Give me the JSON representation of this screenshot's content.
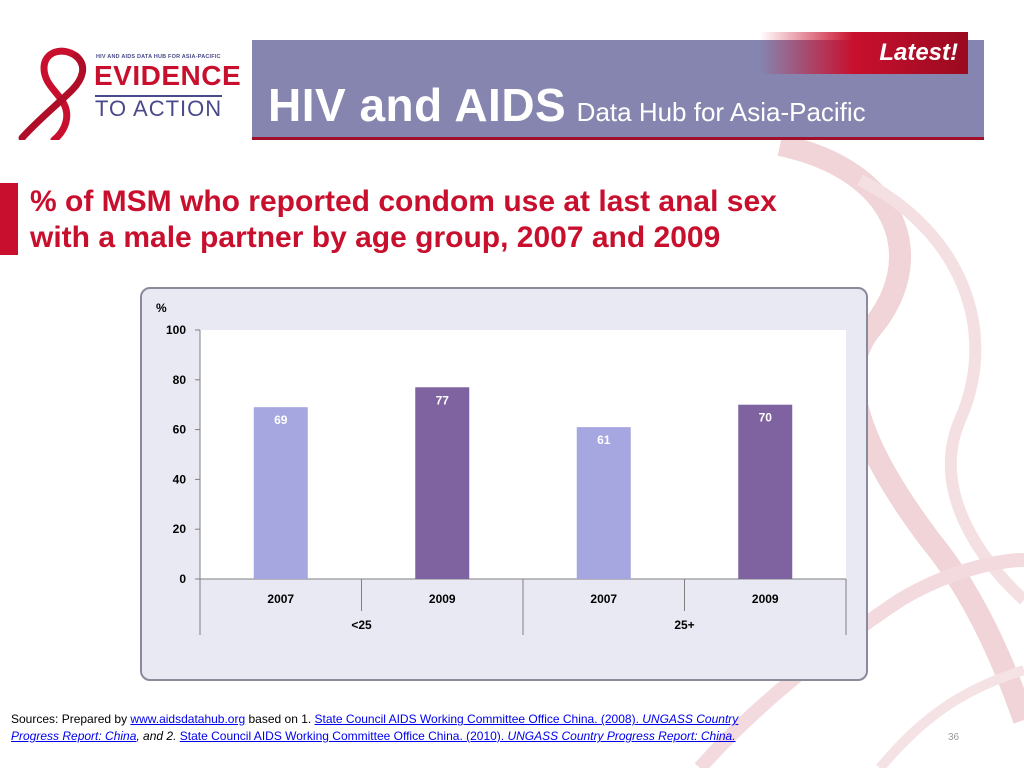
{
  "header": {
    "logo_small_text": "HIV AND AIDS DATA HUB FOR ASIA-PACIFIC",
    "logo_line1": "EVIDENCE",
    "logo_line2": "TO ACTION",
    "title_main": "HIV and AIDS",
    "title_sub": "Data Hub for Asia-Pacific",
    "latest_label": "Latest!"
  },
  "slide": {
    "title_line1": "% of MSM who reported condom use at last anal sex",
    "title_line2": "with a male partner by age group, 2007 and 2009",
    "page_number": "36"
  },
  "sources": {
    "prefix": "Sources: Prepared by ",
    "link_main": "www.aidsdatahub.org",
    "based_on": "  based on 1. ",
    "ref1_link": "State Council AIDS Working Committee Office China. (2008). ",
    "ref1_title_a": "UNGASS Country",
    "ref1_title_b": "Progress Report: China",
    "and_2": ", and 2. ",
    "ref2_link": "State Council AIDS Working Committee Office China. (2010). ",
    "ref2_title": "UNGASS Country Progress Report: China."
  },
  "colors": {
    "light_bar": "#a6a6e0",
    "dark_bar": "#7f62a0",
    "accent_red": "#c8102e",
    "header_band": "#8585b0"
  },
  "chart_data": {
    "type": "bar",
    "ylabel": "%",
    "ylim": [
      0,
      100
    ],
    "yticks": [
      0,
      20,
      40,
      60,
      80,
      100
    ],
    "groups": [
      "<25",
      "25+"
    ],
    "categories": [
      "2007",
      "2009",
      "2007",
      "2009"
    ],
    "category_group": [
      0,
      0,
      1,
      1
    ],
    "values": [
      69,
      77,
      61,
      70
    ],
    "value_labels": [
      "69",
      "77",
      "61",
      "70"
    ],
    "bar_colors": [
      "#a6a6e0",
      "#7f62a0",
      "#a6a6e0",
      "#7f62a0"
    ],
    "grid": false
  }
}
